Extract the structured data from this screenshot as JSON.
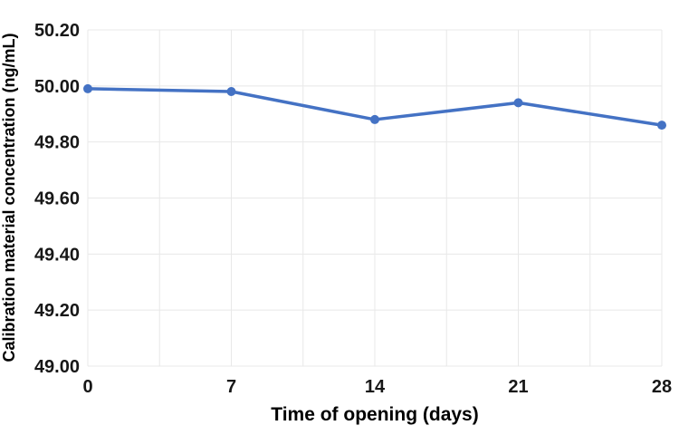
{
  "chart_data": {
    "type": "line",
    "title": "",
    "xlabel": "Time of opening (days)",
    "ylabel": "Calibration material concentration (ng/mL)",
    "x": [
      0,
      7,
      14,
      21,
      28
    ],
    "series": [
      {
        "name": "Calibration material concentration",
        "values": [
          49.99,
          49.98,
          49.88,
          49.94,
          49.86
        ],
        "color": "#4472C4"
      }
    ],
    "xtick_labels": [
      "0",
      "7",
      "14",
      "21",
      "28"
    ],
    "xtick_values": [
      0,
      7,
      14,
      21,
      28
    ],
    "ytick_labels": [
      "49.00",
      "49.20",
      "49.40",
      "49.60",
      "49.80",
      "50.00",
      "50.20"
    ],
    "ytick_values": [
      49.0,
      49.2,
      49.4,
      49.6,
      49.8,
      50.0,
      50.2
    ],
    "xlim": [
      0,
      28
    ],
    "ylim": [
      49.0,
      50.2
    ],
    "x_grid_step": 3.5,
    "grid": "on",
    "legend": "none",
    "colors": {
      "gridline": "#E8E8E8",
      "tick_text": "#171717",
      "axis_title_text": "#000000",
      "background": "#FFFFFF"
    }
  }
}
